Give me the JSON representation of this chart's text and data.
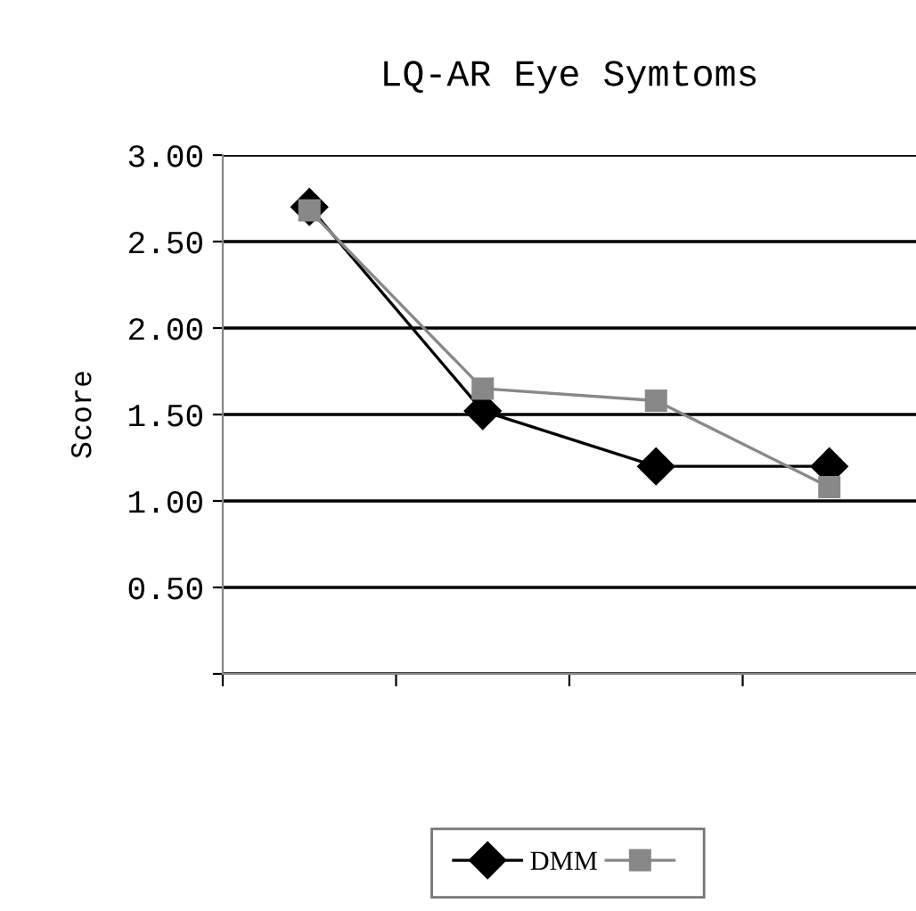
{
  "chart_data": {
    "type": "line",
    "title": "LQ-AR Eye Symtoms",
    "ylabel": "Score",
    "categories": [
      null,
      null,
      null,
      null
    ],
    "series": [
      {
        "name": "DMM",
        "color": "#000000",
        "marker": "diamond",
        "values": [
          2.7,
          1.52,
          1.2,
          1.2
        ]
      },
      {
        "color": "#888888",
        "marker": "square",
        "values": [
          2.68,
          1.65,
          1.58,
          1.08
        ]
      }
    ],
    "ylim": [
      0,
      3
    ],
    "yticks": [
      {
        "value": 0,
        "label": null
      },
      {
        "value": 0.5,
        "label": "0.50"
      },
      {
        "value": 1,
        "label": "1.00"
      },
      {
        "value": 1.5,
        "label": "1.50"
      },
      {
        "value": 2,
        "label": "2.00"
      },
      {
        "value": 2.5,
        "label": "2.50"
      },
      {
        "value": 3,
        "label": "3.00"
      }
    ],
    "grid": "y",
    "legend": "bottom",
    "line_style": "solid"
  }
}
